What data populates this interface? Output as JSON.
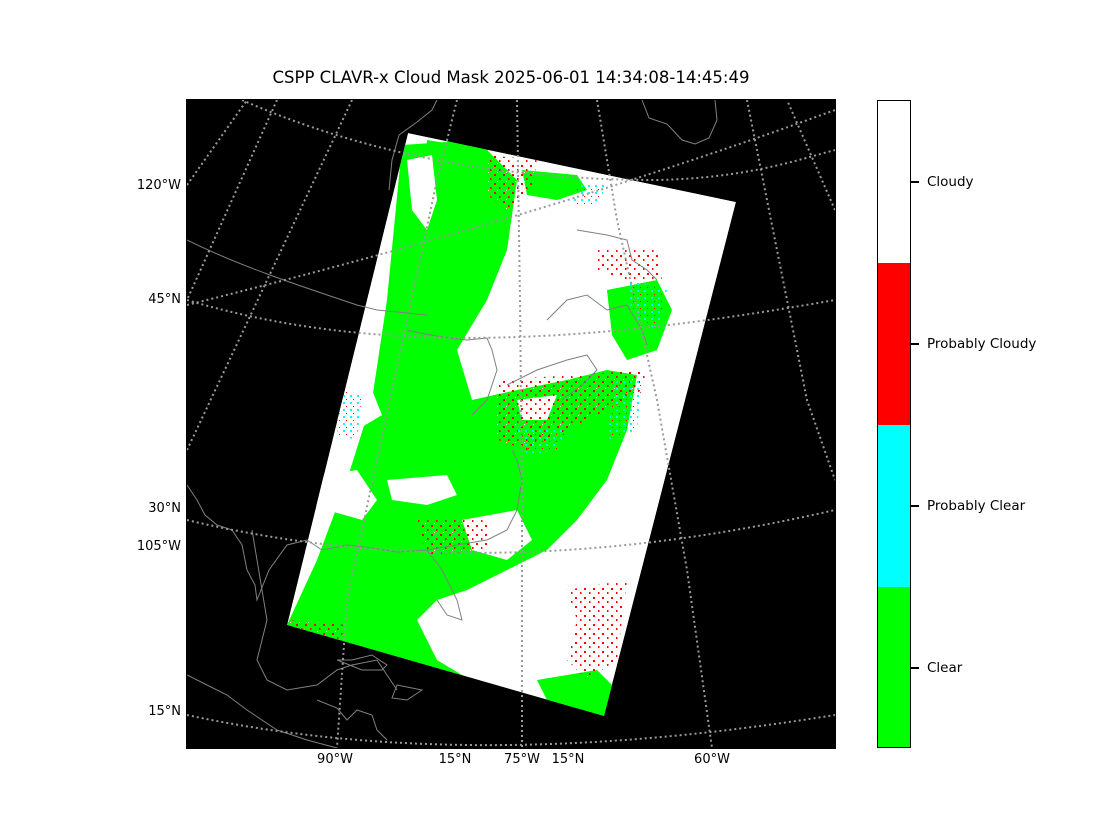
{
  "title": "CSPP CLAVR-x Cloud Mask 2025-06-01 14:34:08-14:45:49",
  "map": {
    "projection": "Lambert conformal",
    "background_color": "#000000",
    "coastline_color": "#808080",
    "graticule_color": "#9a9a9a",
    "graticule_style": "dotted",
    "lat_labels": [
      {
        "text": "120°W"
      },
      {
        "text": "45°N"
      },
      {
        "text": "30°N"
      },
      {
        "text": "105°W"
      },
      {
        "text": "15°N"
      }
    ],
    "lon_labels": [
      {
        "text": "90°W"
      },
      {
        "text": "15°N"
      },
      {
        "text": "75°W"
      },
      {
        "text": "15°N"
      },
      {
        "text": "60°W"
      }
    ]
  },
  "colorbar": {
    "categories": [
      {
        "label": "Cloudy",
        "color": "#ffffff"
      },
      {
        "label": "Probably Cloudy",
        "color": "#ff0000"
      },
      {
        "label": "Probably Clear",
        "color": "#00ffff"
      },
      {
        "label": "Clear",
        "color": "#00ff00"
      }
    ]
  }
}
